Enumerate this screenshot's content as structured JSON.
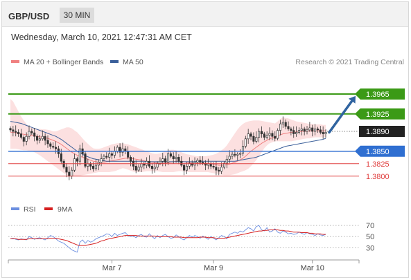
{
  "header": {
    "pair": "GBP/USD",
    "timeframe": "30 MIN",
    "datetime": "Wednesday, March 10, 2021 12:47:31 AM CET"
  },
  "legend_top": {
    "ma20_label": "MA 20 + Bollinger Bands",
    "ma50_label": "MA 50",
    "credit": "Research © 2021 Trading Central"
  },
  "legend_rsi": {
    "rsi_label": "RSI",
    "ma9_label": "9MA"
  },
  "colors": {
    "candle": "#333333",
    "bollinger_fill": "#fbdada",
    "ma20": "#f08080",
    "ma50": "#3a5f9a",
    "resistance": "#3b9a16",
    "current": "#222222",
    "pivot": "#2f6fd1",
    "support": "#e04040",
    "arrow": "#3064a0",
    "rsi": "#6c8fe0",
    "ma9": "#d62020"
  },
  "chart_data": [
    {
      "type": "candlestick",
      "title": "",
      "x_axis": {
        "ticks": [
          "Mar 7",
          "Mar 9",
          "Mar 10"
        ],
        "tick_index": [
          38,
          76,
          113
        ]
      },
      "y_range": [
        1.3765,
        1.4015
      ],
      "levels": [
        {
          "label": "1.3965",
          "value": 1.3965,
          "kind": "resistance"
        },
        {
          "label": "1.3925",
          "value": 1.3925,
          "kind": "resistance"
        },
        {
          "label": "1.3890",
          "value": 1.389,
          "kind": "current"
        },
        {
          "label": "1.3850",
          "value": 1.385,
          "kind": "pivot"
        },
        {
          "label": "1.3825",
          "value": 1.3825,
          "kind": "support"
        },
        {
          "label": "1.3800",
          "value": 1.38,
          "kind": "support"
        }
      ],
      "forecast_arrow": {
        "from": 1.3888,
        "to": 1.3961
      },
      "close": [
        1.3893,
        1.389,
        1.3888,
        1.3885,
        1.3878,
        1.387,
        1.388,
        1.389,
        1.3887,
        1.388,
        1.3872,
        1.3875,
        1.388,
        1.3872,
        1.3865,
        1.386,
        1.3858,
        1.3855,
        1.3845,
        1.383,
        1.3818,
        1.3808,
        1.38,
        1.3812,
        1.3835,
        1.383,
        1.3855,
        1.3845,
        1.382,
        1.3825,
        1.382,
        1.3815,
        1.3822,
        1.3828,
        1.3835,
        1.384,
        1.3838,
        1.3845,
        1.3842,
        1.385,
        1.3858,
        1.3848,
        1.3855,
        1.385,
        1.3838,
        1.383,
        1.382,
        1.3812,
        1.3818,
        1.3825,
        1.3822,
        1.383,
        1.382,
        1.3815,
        1.3818,
        1.3826,
        1.383,
        1.3835,
        1.3828,
        1.3845,
        1.384,
        1.3835,
        1.3838,
        1.383,
        1.3822,
        1.3812,
        1.382,
        1.3826,
        1.3822,
        1.3828,
        1.3832,
        1.3828,
        1.3826,
        1.3822,
        1.3825,
        1.382,
        1.3818,
        1.3812,
        1.381,
        1.3818,
        1.3826,
        1.3834,
        1.384,
        1.3844,
        1.3842,
        1.3844,
        1.3846,
        1.386,
        1.3875,
        1.3885,
        1.388,
        1.387,
        1.3878,
        1.389,
        1.3885,
        1.3878,
        1.3882,
        1.3886,
        1.388,
        1.3876,
        1.3892,
        1.3905,
        1.3908,
        1.39,
        1.3895,
        1.3892,
        1.3885,
        1.3888,
        1.3892,
        1.3895,
        1.389,
        1.3893,
        1.3897,
        1.389,
        1.3895,
        1.3893,
        1.3888,
        1.3885,
        1.3888
      ],
      "overlays": {
        "ma20": [
          1.3888,
          1.3888,
          1.3887,
          1.3886,
          1.3885,
          1.3884,
          1.3883,
          1.3883,
          1.3882,
          1.3881,
          1.388,
          1.3879,
          1.3878,
          1.3877,
          1.3876,
          1.3874,
          1.3872,
          1.387,
          1.3867,
          1.3864,
          1.386,
          1.3856,
          1.3852,
          1.3848,
          1.3845,
          1.3842,
          1.384,
          1.3838,
          1.3836,
          1.3834,
          1.3832,
          1.383,
          1.3829,
          1.3828,
          1.3828,
          1.3828,
          1.3829,
          1.383,
          1.3831,
          1.3832,
          1.3833,
          1.3834,
          1.3835,
          1.3836,
          1.3836,
          1.3836,
          1.3835,
          1.3834,
          1.3833,
          1.3832,
          1.3831,
          1.383,
          1.3829,
          1.3828,
          1.3827,
          1.3826,
          1.3826,
          1.3826,
          1.3826,
          1.3827,
          1.3828,
          1.3829,
          1.383,
          1.383,
          1.383,
          1.3829,
          1.3828,
          1.3827,
          1.3826,
          1.3826,
          1.3826,
          1.3826,
          1.3826,
          1.3826,
          1.3826,
          1.3825,
          1.3824,
          1.3823,
          1.3822,
          1.3822,
          1.3822,
          1.3823,
          1.3824,
          1.3826,
          1.3828,
          1.383,
          1.3833,
          1.3836,
          1.384,
          1.3845,
          1.385,
          1.3854,
          1.3858,
          1.3862,
          1.3866,
          1.3869,
          1.3872,
          1.3875,
          1.3877,
          1.3879,
          1.3881,
          1.3883,
          1.3885,
          1.3886,
          1.3887,
          1.3888,
          1.3888,
          1.3889,
          1.3889,
          1.389,
          1.389,
          1.389,
          1.3891,
          1.3891,
          1.3891,
          1.3891,
          1.3891,
          1.3891,
          1.3891
        ],
        "bb_upper": [
          1.3955,
          1.395,
          1.394,
          1.393,
          1.392,
          1.3912,
          1.3905,
          1.39,
          1.3898,
          1.3896,
          1.3895,
          1.3895,
          1.3894,
          1.3894,
          1.3893,
          1.3892,
          1.389,
          1.389,
          1.3892,
          1.3894,
          1.3896,
          1.3898,
          1.3898,
          1.3896,
          1.3892,
          1.3888,
          1.3882,
          1.3876,
          1.387,
          1.3865,
          1.386,
          1.3856,
          1.3855,
          1.3855,
          1.3856,
          1.3858,
          1.386,
          1.3862,
          1.3864,
          1.3865,
          1.3866,
          1.3866,
          1.3866,
          1.3865,
          1.3864,
          1.3862,
          1.386,
          1.3858,
          1.3856,
          1.3854,
          1.3852,
          1.385,
          1.3848,
          1.3846,
          1.3845,
          1.3845,
          1.3846,
          1.3848,
          1.385,
          1.3852,
          1.3853,
          1.3853,
          1.3852,
          1.385,
          1.3848,
          1.3846,
          1.3844,
          1.3843,
          1.3842,
          1.3841,
          1.384,
          1.384,
          1.384,
          1.384,
          1.3841,
          1.3842,
          1.3843,
          1.3845,
          1.3848,
          1.3852,
          1.3856,
          1.3862,
          1.387,
          1.3878,
          1.3886,
          1.3894,
          1.39,
          1.3905,
          1.3908,
          1.391,
          1.3911,
          1.3912,
          1.3912,
          1.3912,
          1.3911,
          1.391,
          1.3909,
          1.3908,
          1.3907,
          1.3906,
          1.391,
          1.3915,
          1.3918,
          1.3917,
          1.3916,
          1.3914,
          1.3912,
          1.391,
          1.3909,
          1.3908,
          1.3907,
          1.3906,
          1.3905,
          1.3905,
          1.3904,
          1.3904,
          1.3904,
          1.3903,
          1.3903
        ],
        "bb_lower": [
          1.3855,
          1.3855,
          1.3855,
          1.3854,
          1.3853,
          1.3852,
          1.3852,
          1.3851,
          1.385,
          1.3848,
          1.3845,
          1.3842,
          1.3838,
          1.3834,
          1.383,
          1.3826,
          1.3822,
          1.3818,
          1.3814,
          1.381,
          1.3806,
          1.3802,
          1.38,
          1.38,
          1.38,
          1.38,
          1.3801,
          1.3802,
          1.3803,
          1.3804,
          1.3805,
          1.3806,
          1.3807,
          1.3808,
          1.3808,
          1.3808,
          1.3808,
          1.3808,
          1.3809,
          1.381,
          1.3812,
          1.3814,
          1.3816,
          1.3815,
          1.3813,
          1.3811,
          1.3809,
          1.3808,
          1.3808,
          1.3808,
          1.3809,
          1.381,
          1.381,
          1.381,
          1.381,
          1.381,
          1.3809,
          1.3808,
          1.3808,
          1.3808,
          1.3808,
          1.3808,
          1.3809,
          1.381,
          1.381,
          1.3809,
          1.3808,
          1.3808,
          1.3808,
          1.3808,
          1.3808,
          1.3808,
          1.3808,
          1.3808,
          1.3808,
          1.3807,
          1.3806,
          1.3805,
          1.3804,
          1.3803,
          1.3802,
          1.3802,
          1.3802,
          1.3803,
          1.3804,
          1.3806,
          1.3808,
          1.381,
          1.3812,
          1.3815,
          1.382,
          1.3826,
          1.3832,
          1.384,
          1.3848,
          1.3856,
          1.3862,
          1.3866,
          1.3868,
          1.387,
          1.387,
          1.387,
          1.387,
          1.387,
          1.387,
          1.387,
          1.3871,
          1.3872,
          1.3873,
          1.3874,
          1.3875,
          1.3876,
          1.3876,
          1.3877,
          1.3878,
          1.3878,
          1.3878,
          1.3878,
          1.3879
        ],
        "ma50": [
          1.391,
          1.3909,
          1.3908,
          1.3907,
          1.3906,
          1.3904,
          1.3902,
          1.39,
          1.3898,
          1.3896,
          1.3894,
          1.3892,
          1.389,
          1.3888,
          1.3886,
          1.3884,
          1.3882,
          1.388,
          1.3877,
          1.3874,
          1.387,
          1.3866,
          1.3862,
          1.3858,
          1.3854,
          1.385,
          1.3847,
          1.3844,
          1.3841,
          1.3839,
          1.3837,
          1.3835,
          1.3834,
          1.3833,
          1.3832,
          1.3831,
          1.383,
          1.383,
          1.383,
          1.383,
          1.383,
          1.383,
          1.383,
          1.383,
          1.383,
          1.383,
          1.383,
          1.383,
          1.383,
          1.383,
          1.383,
          1.3829,
          1.3829,
          1.3829,
          1.3829,
          1.3829,
          1.3829,
          1.3829,
          1.3829,
          1.3829,
          1.3829,
          1.3829,
          1.3829,
          1.3829,
          1.3829,
          1.3829,
          1.3829,
          1.3829,
          1.3829,
          1.3829,
          1.383,
          1.383,
          1.383,
          1.383,
          1.383,
          1.383,
          1.383,
          1.383,
          1.383,
          1.383,
          1.383,
          1.383,
          1.383,
          1.383,
          1.383,
          1.3831,
          1.3832,
          1.3833,
          1.3834,
          1.3835,
          1.3836,
          1.3837,
          1.3838,
          1.384,
          1.3842,
          1.3844,
          1.3846,
          1.3848,
          1.385,
          1.3852,
          1.3854,
          1.3856,
          1.3858,
          1.386,
          1.3861,
          1.3862,
          1.3863,
          1.3864,
          1.3865,
          1.3866,
          1.3867,
          1.3868,
          1.3869,
          1.387,
          1.3871,
          1.3872,
          1.3873,
          1.3874,
          1.3876
        ]
      }
    },
    {
      "type": "line",
      "title": "",
      "y_range": [
        18,
        80
      ],
      "y_ticks": [
        70,
        50,
        30
      ],
      "series": [
        {
          "name": "RSI",
          "values": [
            46,
            47,
            45,
            44,
            46,
            45,
            44,
            50,
            48,
            45,
            47,
            48,
            46,
            44,
            48,
            52,
            50,
            46,
            42,
            40,
            38,
            34,
            30,
            26,
            24,
            22,
            40,
            44,
            38,
            43,
            40,
            42,
            46,
            48,
            50,
            52,
            55,
            54,
            50,
            56,
            52,
            54,
            56,
            57,
            52,
            50,
            51,
            48,
            52,
            54,
            50,
            49,
            55,
            50,
            46,
            52,
            48,
            52,
            54,
            50,
            47,
            48,
            53,
            50,
            46,
            44,
            48,
            52,
            49,
            52,
            50,
            47,
            51,
            48,
            45,
            50,
            47,
            44,
            48,
            52,
            50,
            46,
            54,
            56,
            58,
            56,
            60,
            58,
            62,
            66,
            64,
            60,
            68,
            70,
            62,
            60,
            66,
            58,
            60,
            64,
            58,
            56,
            60,
            58,
            55,
            56,
            54,
            55,
            58,
            56,
            54,
            57,
            55,
            54,
            52,
            55,
            53,
            52,
            54
          ]
        },
        {
          "name": "9MA",
          "values": [
            46,
            46,
            46,
            45,
            45,
            45,
            45,
            46,
            46,
            46,
            46,
            46,
            46,
            46,
            46,
            47,
            47,
            47,
            46,
            45,
            44,
            43,
            41,
            39,
            37,
            35,
            34,
            34,
            34,
            35,
            36,
            37,
            38,
            40,
            42,
            43,
            45,
            46,
            47,
            48,
            49,
            50,
            51,
            52,
            52,
            52,
            52,
            52,
            51,
            51,
            51,
            51,
            51,
            51,
            51,
            50,
            50,
            50,
            50,
            50,
            50,
            49,
            49,
            49,
            49,
            48,
            48,
            48,
            48,
            48,
            48,
            49,
            49,
            49,
            48,
            48,
            48,
            47,
            47,
            47,
            47,
            48,
            49,
            50,
            51,
            52,
            53,
            54,
            55,
            56,
            57,
            58,
            59,
            60,
            60,
            61,
            61,
            62,
            62,
            62,
            62,
            61,
            61,
            60,
            60,
            59,
            58,
            58,
            58,
            57,
            57,
            57,
            56,
            56,
            55,
            55,
            55,
            54,
            54
          ]
        }
      ]
    }
  ]
}
